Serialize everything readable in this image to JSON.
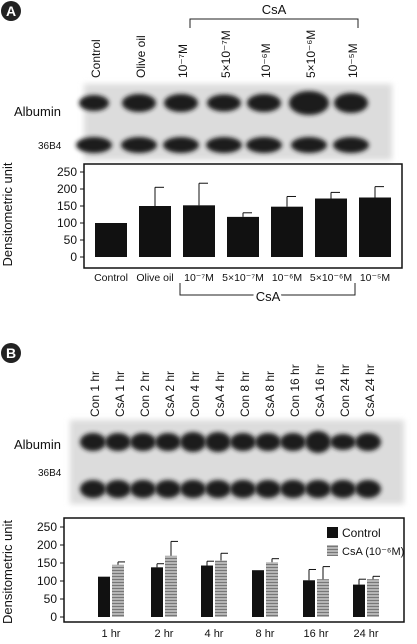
{
  "panel_a": {
    "badge": "A",
    "top_bracket_label": "CsA",
    "lane_labels": [
      "Control",
      "Olive oil",
      "10⁻⁷M",
      "5×10⁻⁷M",
      "10⁻⁶M",
      "5×10⁻⁶M",
      "10⁻⁵M"
    ],
    "blot_labels": [
      "Albumin",
      "36B4"
    ],
    "bottom_bracket_label": "CsA"
  },
  "panel_b": {
    "badge": "B",
    "lane_labels": [
      "Con 1 hr",
      "CsA 1 hr",
      "Con 2 hr",
      "CsA 2 hr",
      "Con 4 hr",
      "CsA 4 hr",
      "Con 8 hr",
      "CsA 8 hr",
      "Con 16 hr",
      "CsA 16 hr",
      "Con 24 hr",
      "CsA 24 hr"
    ],
    "blot_labels": [
      "Albumin",
      "36B4"
    ]
  },
  "colors": {
    "bar_black": "#111111",
    "bar_hatched": "#9a9a9a",
    "blot_bg": "#dcdcdc",
    "band": "#1a1a1a"
  },
  "chart_data": [
    {
      "type": "bar",
      "ylabel": "Densitometric unit",
      "ylim": [
        0,
        250
      ],
      "yticks": [
        0,
        50,
        100,
        150,
        200,
        250
      ],
      "categories": [
        "Control",
        "Olive oil",
        "10⁻⁷M",
        "5×10⁻⁷M",
        "10⁻⁶M",
        "5×10⁻⁶M",
        "10⁻⁵M"
      ],
      "values": [
        100,
        150,
        152,
        118,
        148,
        172,
        175
      ],
      "errors": [
        0,
        55,
        65,
        12,
        30,
        18,
        32
      ],
      "bracket_label": "CsA",
      "bracket_from_category": 2,
      "bracket_to_category": 6
    },
    {
      "type": "bar",
      "ylabel": "Densitometric unit",
      "ylim": [
        0,
        250
      ],
      "yticks": [
        0,
        50,
        100,
        150,
        200,
        250
      ],
      "categories": [
        "1 hr",
        "2 hr",
        "4 hr",
        "8 hr",
        "16 hr",
        "24 hr"
      ],
      "series": [
        {
          "name": "Control",
          "values": [
            112,
            138,
            143,
            130,
            102,
            90
          ],
          "errors": [
            0,
            10,
            12,
            0,
            30,
            15
          ]
        },
        {
          "name": "CsA (10⁻⁶M)",
          "values": [
            145,
            170,
            157,
            152,
            105,
            105
          ],
          "errors": [
            8,
            40,
            20,
            10,
            35,
            8
          ]
        }
      ],
      "legend_position": "top-right"
    }
  ]
}
